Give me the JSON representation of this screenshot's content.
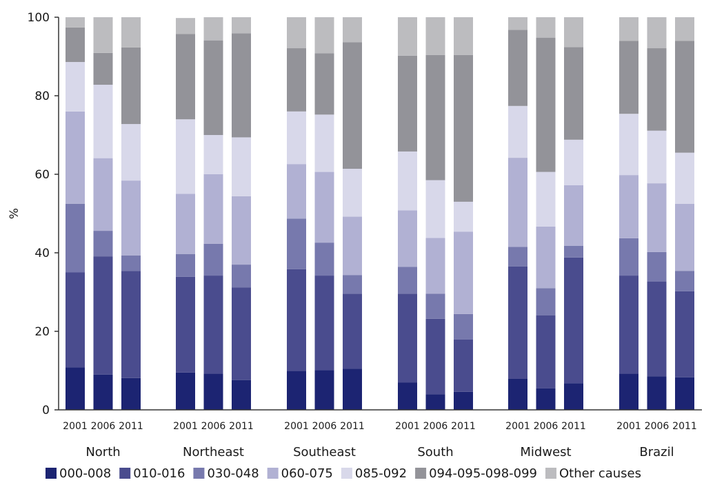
{
  "chart_data": {
    "type": "bar",
    "stacked": true,
    "title": "",
    "xlabel": "",
    "ylabel": "%",
    "ylim": [
      0,
      100
    ],
    "yticks": [
      0,
      20,
      40,
      60,
      80,
      100
    ],
    "grid": false,
    "legend_position": "bottom",
    "groups": [
      "North",
      "Northeast",
      "Southeast",
      "South",
      "Midwest",
      "Brazil"
    ],
    "years": [
      "2001",
      "2006",
      "2011"
    ],
    "series": [
      {
        "name": "000-008",
        "color": "#1c2472",
        "values": [
          [
            10.8,
            9.0,
            8.1
          ],
          [
            9.5,
            9.2,
            7.6
          ],
          [
            9.9,
            10.1,
            10.5
          ],
          [
            7.0,
            4.0,
            4.6
          ],
          [
            7.9,
            5.5,
            6.8
          ],
          [
            9.2,
            8.5,
            8.3
          ]
        ]
      },
      {
        "name": "010-016",
        "color": "#4a4c8e",
        "values": [
          [
            24.2,
            30.1,
            27.3
          ],
          [
            24.4,
            25.0,
            23.6
          ],
          [
            25.9,
            24.1,
            19.1
          ],
          [
            22.6,
            19.2,
            13.3
          ],
          [
            28.6,
            18.6,
            32.0
          ],
          [
            25.0,
            24.2,
            21.9
          ]
        ]
      },
      {
        "name": "030-048",
        "color": "#7779ad",
        "values": [
          [
            17.5,
            6.5,
            3.9
          ],
          [
            5.8,
            8.1,
            5.8
          ],
          [
            12.9,
            8.4,
            4.7
          ],
          [
            6.8,
            6.4,
            6.5
          ],
          [
            5.0,
            6.9,
            3.0
          ],
          [
            9.5,
            7.5,
            5.2
          ]
        ]
      },
      {
        "name": "060-075",
        "color": "#b1b1d3",
        "values": [
          [
            23.5,
            18.5,
            19.1
          ],
          [
            15.3,
            17.7,
            17.4
          ],
          [
            13.9,
            18.0,
            14.9
          ],
          [
            14.4,
            14.2,
            21.0
          ],
          [
            22.7,
            15.7,
            15.4
          ],
          [
            16.1,
            17.5,
            17.1
          ]
        ]
      },
      {
        "name": "085-092",
        "color": "#d8d8ea",
        "values": [
          [
            12.6,
            18.7,
            14.4
          ],
          [
            19.0,
            10.0,
            15.0
          ],
          [
            13.4,
            14.6,
            12.2
          ],
          [
            15.0,
            14.7,
            7.6
          ],
          [
            13.2,
            13.9,
            11.6
          ],
          [
            15.6,
            13.4,
            13.0
          ]
        ]
      },
      {
        "name": "094-095-098-099",
        "color": "#939399",
        "values": [
          [
            8.8,
            8.1,
            19.5
          ],
          [
            21.7,
            24.1,
            26.5
          ],
          [
            16.1,
            15.6,
            32.2
          ],
          [
            24.4,
            31.9,
            37.4
          ],
          [
            19.4,
            34.2,
            23.6
          ],
          [
            18.6,
            21.0,
            28.5
          ]
        ]
      },
      {
        "name": "Other causes",
        "color": "#bcbcbf",
        "values": [
          [
            2.6,
            9.1,
            7.7
          ],
          [
            4.1,
            5.9,
            4.1
          ],
          [
            7.9,
            9.2,
            6.4
          ],
          [
            9.8,
            9.6,
            9.6
          ],
          [
            3.2,
            5.2,
            7.6
          ],
          [
            6.0,
            7.9,
            6.0
          ]
        ]
      }
    ]
  }
}
